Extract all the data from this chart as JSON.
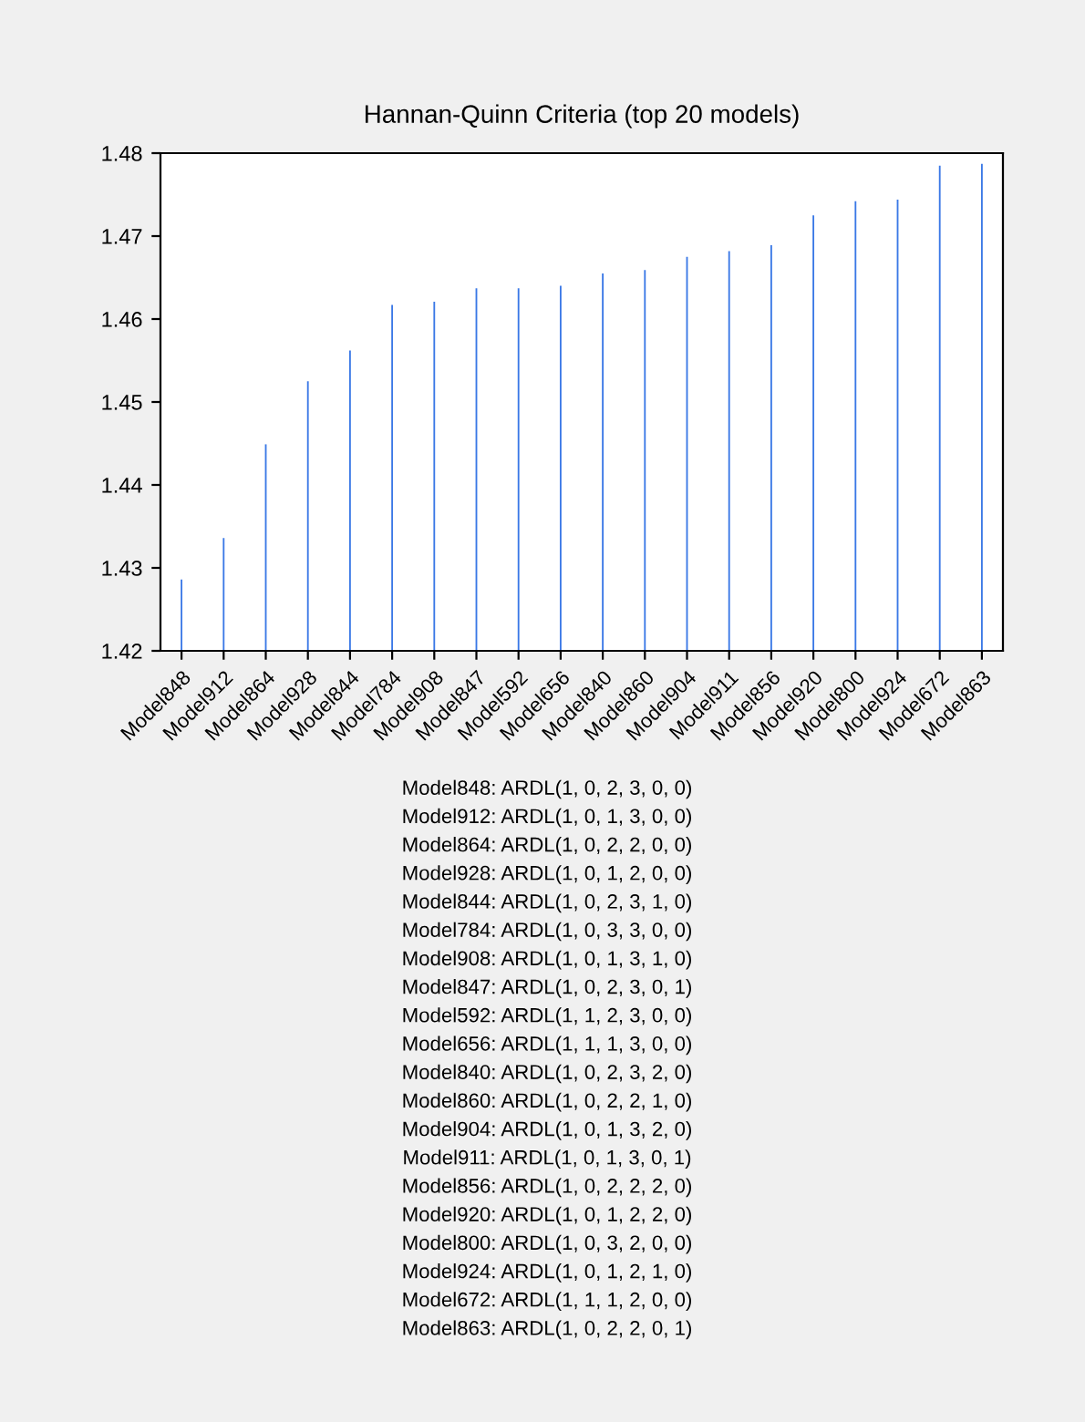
{
  "chart_data": {
    "type": "bar",
    "title": "Hannan-Quinn Criteria (top 20 models)",
    "categories": [
      "Model848",
      "Model912",
      "Model864",
      "Model928",
      "Model844",
      "Model784",
      "Model908",
      "Model847",
      "Model592",
      "Model656",
      "Model840",
      "Model860",
      "Model904",
      "Model911",
      "Model856",
      "Model920",
      "Model800",
      "Model924",
      "Model672",
      "Model863"
    ],
    "values": [
      1.4286,
      1.4336,
      1.4449,
      1.4525,
      1.4562,
      1.4617,
      1.4621,
      1.4637,
      1.4637,
      1.464,
      1.4655,
      1.4659,
      1.4675,
      1.4682,
      1.4689,
      1.4725,
      1.4742,
      1.4744,
      1.4785,
      1.4787
    ],
    "color": "#3a78e6",
    "ylim": [
      1.42,
      1.48
    ],
    "yticks": [
      1.42,
      1.43,
      1.44,
      1.45,
      1.46,
      1.47,
      1.48
    ],
    "grid": false,
    "legend": false,
    "annotations": [
      "Model848: ARDL(1, 0, 2, 3, 0, 0)",
      "Model912: ARDL(1, 0, 1, 3, 0, 0)",
      "Model864: ARDL(1, 0, 2, 2, 0, 0)",
      "Model928: ARDL(1, 0, 1, 2, 0, 0)",
      "Model844: ARDL(1, 0, 2, 3, 1, 0)",
      "Model784: ARDL(1, 0, 3, 3, 0, 0)",
      "Model908: ARDL(1, 0, 1, 3, 1, 0)",
      "Model847: ARDL(1, 0, 2, 3, 0, 1)",
      "Model592: ARDL(1, 1, 2, 3, 0, 0)",
      "Model656: ARDL(1, 1, 1, 3, 0, 0)",
      "Model840: ARDL(1, 0, 2, 3, 2, 0)",
      "Model860: ARDL(1, 0, 2, 2, 1, 0)",
      "Model904: ARDL(1, 0, 1, 3, 2, 0)",
      "Model911: ARDL(1, 0, 1, 3, 0, 1)",
      "Model856: ARDL(1, 0, 2, 2, 2, 0)",
      "Model920: ARDL(1, 0, 1, 2, 2, 0)",
      "Model800: ARDL(1, 0, 3, 2, 0, 0)",
      "Model924: ARDL(1, 0, 1, 2, 1, 0)",
      "Model672: ARDL(1, 1, 1, 2, 0, 0)",
      "Model863: ARDL(1, 0, 2, 2, 0, 1)"
    ]
  }
}
